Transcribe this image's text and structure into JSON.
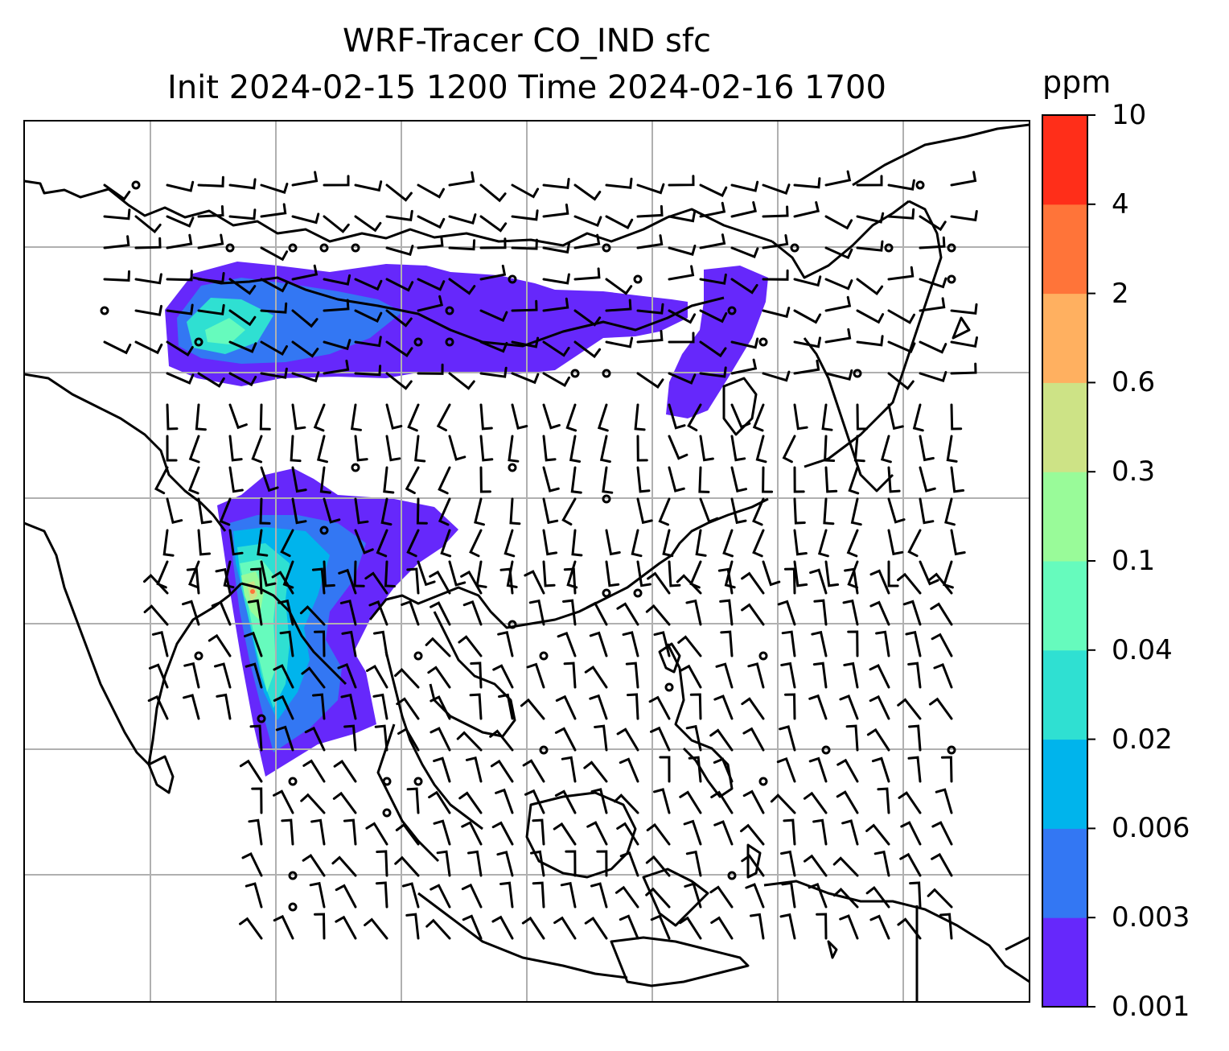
{
  "title": {
    "line1": "WRF-Tracer CO_IND sfc",
    "line2": "Init 2024-02-15 1200 Time 2024-02-16 1700"
  },
  "colorbar": {
    "unit": "ppm",
    "levels": [
      "0.001",
      "0.003",
      "0.006",
      "0.02",
      "0.04",
      "0.1",
      "0.3",
      "0.6",
      "2",
      "4",
      "10"
    ],
    "colors": [
      "#6628fb",
      "#3377f3",
      "#00b4ec",
      "#2fe0d2",
      "#66fbbd",
      "#99fb99",
      "#cde386",
      "#ffb060",
      "#ff7439",
      "#ff2e19"
    ]
  },
  "map": {
    "frame_color": "#000000",
    "gridline_color": "#b0b0b0",
    "coastline_color": "#000000",
    "features": [
      "coastlines",
      "country-borders",
      "gridlines",
      "wind-barbs",
      "tracer-plumes"
    ]
  }
}
